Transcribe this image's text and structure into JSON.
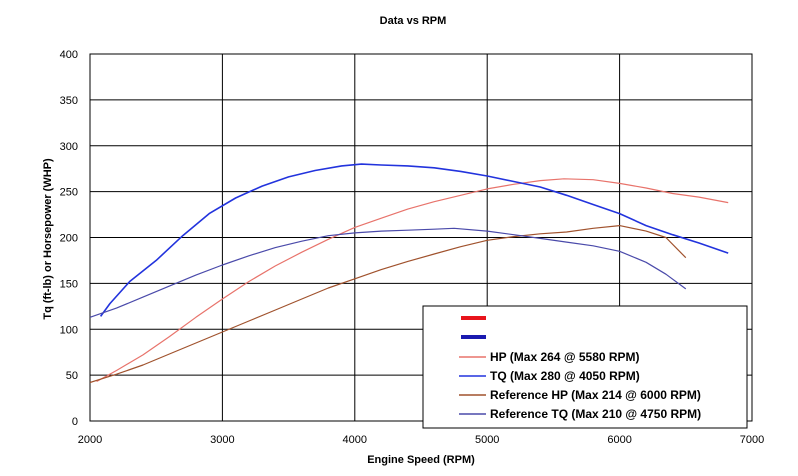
{
  "chart_data": {
    "type": "line",
    "title": "Data vs RPM",
    "xlabel": "Engine Speed (RPM)",
    "ylabel": "Tq (ft-lb) or Horsepower (WHP)",
    "xlim": [
      2000,
      7000
    ],
    "ylim": [
      0,
      400
    ],
    "xticks": [
      "2000",
      "3000",
      "4000",
      "5000",
      "6000",
      "7000"
    ],
    "yticks": [
      "0",
      "50",
      "100",
      "150",
      "200",
      "250",
      "300",
      "350",
      "400"
    ],
    "grid": true,
    "legend_position": "bottom-right",
    "legend_blank_entries": [
      {
        "color": "#e8141c"
      },
      {
        "color": "#1a1ab0"
      }
    ],
    "series": [
      {
        "name": "HP (Max 264 @ 5580 RPM)",
        "color": "#e8736b",
        "x": [
          2050,
          2200,
          2400,
          2600,
          2800,
          3000,
          3200,
          3400,
          3600,
          3800,
          4000,
          4200,
          4400,
          4600,
          4800,
          5000,
          5200,
          5400,
          5580,
          5800,
          6000,
          6200,
          6400,
          6600,
          6820
        ],
        "y": [
          43,
          55,
          72,
          92,
          113,
          133,
          152,
          169,
          184,
          198,
          211,
          221,
          231,
          239,
          246,
          253,
          258,
          262,
          264,
          263,
          259,
          254,
          248,
          244,
          238
        ]
      },
      {
        "name": "TQ (Max 280 @ 4050 RPM)",
        "color": "#2233dd",
        "x": [
          2080,
          2150,
          2300,
          2500,
          2700,
          2900,
          3100,
          3300,
          3500,
          3700,
          3900,
          4050,
          4200,
          4400,
          4600,
          4800,
          5000,
          5200,
          5400,
          5600,
          5800,
          6000,
          6200,
          6400,
          6600,
          6820
        ],
        "y": [
          114,
          128,
          152,
          175,
          202,
          226,
          243,
          256,
          266,
          273,
          278,
          280,
          279,
          278,
          276,
          272,
          267,
          261,
          255,
          246,
          236,
          226,
          213,
          203,
          194,
          183
        ]
      },
      {
        "name": "Reference HP (Max 214 @ 6000 RPM)",
        "color": "#a0522d",
        "x": [
          2000,
          2200,
          2400,
          2600,
          2800,
          3000,
          3200,
          3400,
          3600,
          3800,
          4000,
          4200,
          4400,
          4600,
          4800,
          5000,
          5200,
          5400,
          5600,
          5800,
          6000,
          6200,
          6350,
          6500
        ],
        "y": [
          42,
          51,
          61,
          73,
          85,
          97,
          109,
          121,
          133,
          145,
          155,
          165,
          174,
          182,
          190,
          197,
          201,
          204,
          206,
          210,
          213,
          207,
          200,
          178
        ]
      },
      {
        "name": "Reference TQ (Max 210 @ 4750 RPM)",
        "color": "#4a4aaa",
        "x": [
          2000,
          2200,
          2400,
          2600,
          2800,
          3000,
          3200,
          3400,
          3600,
          3800,
          4000,
          4200,
          4400,
          4600,
          4750,
          5000,
          5200,
          5400,
          5600,
          5800,
          6000,
          6200,
          6350,
          6500
        ],
        "y": [
          113,
          123,
          135,
          147,
          159,
          170,
          180,
          189,
          196,
          202,
          205,
          207,
          208,
          209,
          210,
          207,
          203,
          199,
          195,
          191,
          185,
          173,
          160,
          144
        ]
      }
    ]
  }
}
